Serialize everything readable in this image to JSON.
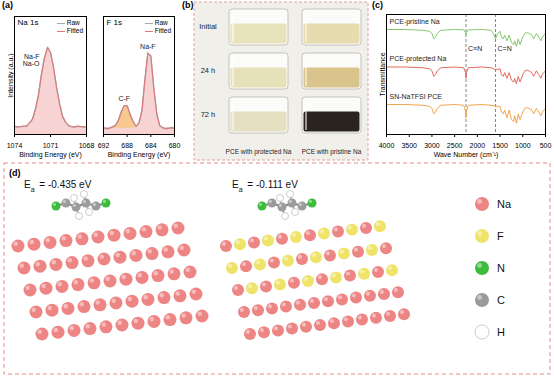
{
  "chart_data": [
    {
      "type": "line",
      "title": "Na 1s",
      "x_label": "Binding Energy (eV)",
      "y_label": "Intensity (a.u.)",
      "x": [
        1074,
        1073.75,
        1073.5,
        1073.25,
        1073,
        1072.75,
        1072.5,
        1072.25,
        1072,
        1071.75,
        1071.5,
        1071.25,
        1071,
        1070.75,
        1070.5,
        1070.25,
        1070,
        1069.75,
        1069.5,
        1069.25,
        1069,
        1068.75,
        1068.5,
        1068.25,
        1068
      ],
      "series": [
        {
          "name": "Raw",
          "color": "#a8a8a8",
          "values": [
            0.11,
            0.09,
            0.1,
            0.11,
            0.1,
            0.15,
            0.19,
            0.33,
            0.5,
            0.77,
            0.97,
            1.11,
            1.04,
            0.86,
            0.6,
            0.4,
            0.23,
            0.16,
            0.11,
            0.1,
            0.09,
            0.11,
            0.1,
            0.09,
            0.1
          ]
        },
        {
          "name": "Fitted",
          "color": "#e5777a",
          "values": [
            0.1,
            0.1,
            0.1,
            0.1,
            0.11,
            0.14,
            0.2,
            0.32,
            0.51,
            0.76,
            0.98,
            1.1,
            1.05,
            0.85,
            0.61,
            0.39,
            0.24,
            0.15,
            0.12,
            0.1,
            0.1,
            0.1,
            0.1,
            0.1,
            0.1
          ]
        }
      ],
      "components": [
        {
          "annotation": [
            "Na-F",
            "Na-O"
          ],
          "color": "#f7d3d3",
          "values": [
            0.1,
            0.1,
            0.1,
            0.1,
            0.11,
            0.14,
            0.2,
            0.32,
            0.51,
            0.76,
            0.98,
            1.1,
            1.05,
            0.85,
            0.61,
            0.39,
            0.24,
            0.15,
            0.12,
            0.1,
            0.1,
            0.1,
            0.1,
            0.1,
            0.1
          ]
        }
      ],
      "xlim": [
        1074,
        1068
      ],
      "xticks": [
        1074,
        1071,
        1068
      ],
      "ylim": [
        0,
        1.5
      ],
      "tick_labels": "x",
      "legend": "top-right"
    },
    {
      "type": "line",
      "title": "F 1s",
      "x_label": "Binding Energy (eV)",
      "x": [
        692,
        691.5,
        691,
        690.5,
        690,
        689.5,
        689,
        688.5,
        688,
        687.5,
        687,
        686.5,
        686,
        685.5,
        685,
        684.5,
        684,
        683.5,
        683,
        682.5,
        682,
        681.5,
        681,
        680.5,
        680
      ],
      "series": [
        {
          "name": "Raw",
          "color": "#a8a8a8",
          "values": [
            0.09,
            0.07,
            0.08,
            0.1,
            0.12,
            0.17,
            0.29,
            0.36,
            0.37,
            0.25,
            0.17,
            0.1,
            0.15,
            0.3,
            0.7,
            1.03,
            1.0,
            0.59,
            0.27,
            0.11,
            0.09,
            0.07,
            0.08,
            0.09,
            0.08
          ]
        },
        {
          "name": "Fitted",
          "color": "#e5777a",
          "values": [
            0.08,
            0.08,
            0.08,
            0.09,
            0.11,
            0.18,
            0.28,
            0.37,
            0.36,
            0.26,
            0.16,
            0.11,
            0.14,
            0.31,
            0.69,
            1.04,
            0.99,
            0.6,
            0.26,
            0.12,
            0.08,
            0.08,
            0.08,
            0.08,
            0.08
          ]
        }
      ],
      "components": [
        {
          "annotation": [
            "C-F"
          ],
          "color": "#f7c98f",
          "values": [
            0.08,
            0.08,
            0.08,
            0.09,
            0.11,
            0.18,
            0.28,
            0.37,
            0.36,
            0.26,
            0.16,
            0.1,
            0.09,
            0.08,
            0.08,
            0.08,
            0.08,
            0.08,
            0.08,
            0.08,
            0.08,
            0.08,
            0.08,
            0.08,
            0.08
          ]
        },
        {
          "annotation": [
            "Na-F"
          ],
          "color": "#f7d3d3",
          "values": [
            0.08,
            0.08,
            0.08,
            0.08,
            0.08,
            0.08,
            0.08,
            0.08,
            0.08,
            0.08,
            0.08,
            0.09,
            0.13,
            0.31,
            0.69,
            1.04,
            0.99,
            0.6,
            0.26,
            0.12,
            0.08,
            0.08,
            0.08,
            0.08,
            0.08
          ]
        }
      ],
      "xlim": [
        692,
        680
      ],
      "xticks": [
        692,
        688,
        684,
        680
      ],
      "ylim": [
        0,
        1.5
      ],
      "tick_labels": "x",
      "legend": "top-right"
    },
    {
      "type": "line",
      "x_label": "Wave Number (cm⁻¹)",
      "y_label": "Transmittance",
      "x": [
        4000,
        3600,
        3200,
        3050,
        3000,
        2960,
        2920,
        2880,
        2800,
        2500,
        2300,
        2260,
        2250,
        2240,
        2200,
        1900,
        1700,
        1650,
        1600,
        1550,
        1500,
        1470,
        1430,
        1400,
        1350,
        1300,
        1250,
        1200,
        1180,
        1140,
        1100,
        1060,
        1000,
        950,
        900,
        800,
        760,
        740,
        700,
        650,
        600,
        570,
        500
      ],
      "series": [
        {
          "name": "PCE-pristine Na",
          "color": "#86c96b",
          "values": [
            2.8,
            2.8,
            2.78,
            2.75,
            2.7,
            2.55,
            2.6,
            2.7,
            2.78,
            2.8,
            2.79,
            2.72,
            2.65,
            2.72,
            2.79,
            2.8,
            2.78,
            2.7,
            2.55,
            2.7,
            2.75,
            2.6,
            2.55,
            2.65,
            2.5,
            2.65,
            2.45,
            2.4,
            2.5,
            2.35,
            2.55,
            2.4,
            2.6,
            2.7,
            2.72,
            2.65,
            2.55,
            2.6,
            2.7,
            2.6,
            2.5,
            2.6,
            2.7
          ]
        },
        {
          "name": "PCE-protected Na",
          "color": "#e46a5e",
          "values": [
            1.8,
            1.8,
            1.78,
            1.75,
            1.7,
            1.55,
            1.6,
            1.7,
            1.78,
            1.8,
            1.78,
            1.65,
            1.5,
            1.65,
            1.78,
            1.8,
            1.78,
            1.76,
            1.72,
            1.74,
            1.75,
            1.6,
            1.55,
            1.65,
            1.5,
            1.65,
            1.45,
            1.4,
            1.5,
            1.35,
            1.55,
            1.4,
            1.6,
            1.7,
            1.72,
            1.65,
            1.55,
            1.6,
            1.7,
            1.6,
            1.5,
            1.6,
            1.7
          ]
        },
        {
          "name": "SN-NaTFSI PCE",
          "color": "#f2a54a",
          "values": [
            0.8,
            0.8,
            0.78,
            0.75,
            0.7,
            0.55,
            0.6,
            0.7,
            0.78,
            0.8,
            0.78,
            0.62,
            0.45,
            0.62,
            0.78,
            0.8,
            0.78,
            0.77,
            0.76,
            0.75,
            0.75,
            0.6,
            0.55,
            0.65,
            0.45,
            0.65,
            0.4,
            0.35,
            0.5,
            0.3,
            0.55,
            0.4,
            0.6,
            0.7,
            0.72,
            0.65,
            0.55,
            0.6,
            0.7,
            0.6,
            0.5,
            0.6,
            0.7
          ]
        }
      ],
      "reference_lines": [
        {
          "x": 2250,
          "label": "C≡N"
        },
        {
          "x": 1600,
          "label": "C=N"
        }
      ],
      "xlim": [
        4000,
        500
      ],
      "xticks": [
        4000,
        3500,
        3000,
        2500,
        2000,
        1500,
        1000,
        500
      ],
      "ylim": [
        0,
        3.2
      ],
      "tick_labels": "x"
    }
  ],
  "panel_labels": [
    "(a)",
    "(b)",
    "(c)",
    "(d)"
  ],
  "photo": {
    "rows": [
      {
        "label": "Initial",
        "liquid_colors": [
          "#e9e3bb",
          "#e6dcae"
        ]
      },
      {
        "label": "24 h",
        "liquid_colors": [
          "#e7e1ba",
          "#d9c48c"
        ]
      },
      {
        "label": "72 h",
        "liquid_colors": [
          "#e5e0c2",
          "#2a2420"
        ]
      }
    ],
    "columns": [
      "PCE with protected Na",
      "PCE with pristine Na"
    ]
  },
  "structures": {
    "panels": [
      {
        "symbol": "E",
        "subscript": "a",
        "relation": "=",
        "value": -0.435,
        "unit": "eV",
        "surface": [
          "Na"
        ]
      },
      {
        "symbol": "E",
        "subscript": "a",
        "relation": "=",
        "value": -0.111,
        "unit": "eV",
        "surface": [
          "Na",
          "F"
        ]
      }
    ],
    "legend": [
      {
        "name": "Na",
        "color": "#ee8585"
      },
      {
        "name": "F",
        "color": "#efe36a"
      },
      {
        "name": "N",
        "color": "#3dbb3d"
      },
      {
        "name": "C",
        "color": "#9b9b9b"
      },
      {
        "name": "H",
        "color": "#ffffff"
      }
    ]
  }
}
